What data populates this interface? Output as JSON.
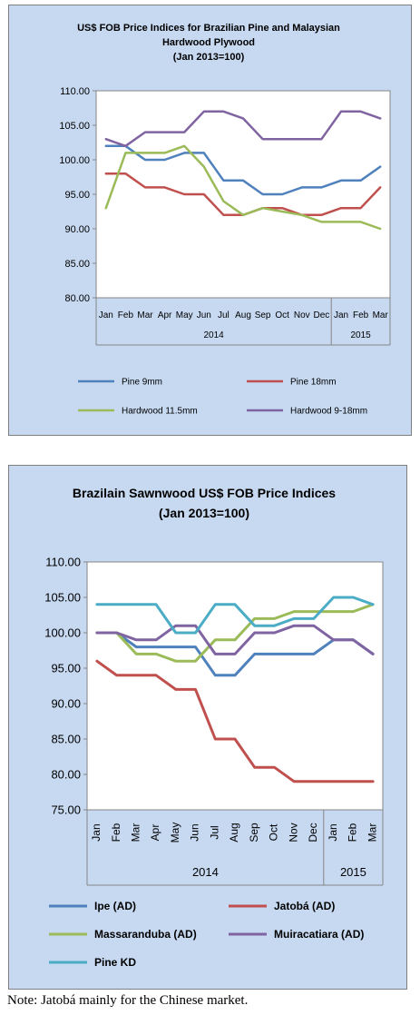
{
  "chart_data": [
    {
      "type": "line",
      "title": [
        "US$ FOB Price Indices for Brazilian Pine and Malaysian",
        "Hardwood Plywood",
        "(Jan 2013=100)"
      ],
      "categories": [
        "Jan",
        "Feb",
        "Mar",
        "Apr",
        "May",
        "Jun",
        "Jul",
        "Aug",
        "Sep",
        "Oct",
        "Nov",
        "Dec",
        "Jan",
        "Feb",
        "Mar"
      ],
      "year_groups": [
        {
          "label": "2014",
          "count": 12
        },
        {
          "label": "2015",
          "count": 3
        }
      ],
      "ylim": [
        80,
        110
      ],
      "yticks": [
        "80.00",
        "85.00",
        "90.00",
        "95.00",
        "100.00",
        "105.00",
        "110.00"
      ],
      "legend_position": "bottom",
      "series": [
        {
          "name": "Pine 9mm",
          "color": "#4f81bd",
          "values": [
            102,
            102,
            100,
            100,
            101,
            101,
            97,
            97,
            95,
            95,
            96,
            96,
            97,
            97,
            99
          ]
        },
        {
          "name": "Pine 18mm",
          "color": "#c0504d",
          "values": [
            98,
            98,
            96,
            96,
            95,
            95,
            92,
            92,
            93,
            93,
            92,
            92,
            93,
            93,
            96
          ]
        },
        {
          "name": "Hardwood 11.5mm",
          "color": "#9bbb59",
          "values": [
            93,
            101,
            101,
            101,
            102,
            99,
            94,
            92,
            93,
            92.5,
            92,
            91,
            91,
            91,
            90
          ]
        },
        {
          "name": "Hardwood 9-18mm",
          "color": "#8064a2",
          "values": [
            103,
            102,
            104,
            104,
            104,
            107,
            107,
            106,
            103,
            103,
            103,
            103,
            107,
            107,
            106
          ]
        }
      ]
    },
    {
      "type": "line",
      "title": [
        "Brazilain Sawnwood US$ FOB Price Indices",
        "(Jan 2013=100)"
      ],
      "categories": [
        "Jan",
        "Feb",
        "Mar",
        "Apr",
        "May",
        "Jun",
        "Jul",
        "Aug",
        "Sep",
        "Oct",
        "Nov",
        "Dec",
        "Jan",
        "Feb",
        "Mar"
      ],
      "year_groups": [
        {
          "label": "2014",
          "count": 12
        },
        {
          "label": "2015",
          "count": 3
        }
      ],
      "ylim": [
        75,
        110
      ],
      "yticks": [
        "75.00",
        "80.00",
        "85.00",
        "90.00",
        "95.00",
        "100.00",
        "105.00",
        "110.00"
      ],
      "legend_position": "bottom",
      "series": [
        {
          "name": "Ipe (AD)",
          "color": "#4f81bd",
          "values": [
            100,
            100,
            98,
            98,
            98,
            98,
            94,
            94,
            97,
            97,
            97,
            97,
            99,
            99,
            97
          ]
        },
        {
          "name": "Jatobá (AD)",
          "color": "#c0504d",
          "values": [
            96,
            94,
            94,
            94,
            92,
            92,
            85,
            85,
            81,
            81,
            79,
            79,
            79,
            79,
            79
          ]
        },
        {
          "name": "Massaranduba (AD)",
          "color": "#9bbb59",
          "values": [
            100,
            100,
            97,
            97,
            96,
            96,
            99,
            99,
            102,
            102,
            103,
            103,
            103,
            103,
            104
          ]
        },
        {
          "name": "Muiracatiara (AD)",
          "color": "#8064a2",
          "values": [
            100,
            100,
            99,
            99,
            101,
            101,
            97,
            97,
            100,
            100,
            101,
            101,
            99,
            99,
            97
          ]
        },
        {
          "name": "Pine KD",
          "color": "#4bacc6",
          "values": [
            104,
            104,
            104,
            104,
            100,
            100,
            104,
            104,
            101,
            101,
            102,
            102,
            105,
            105,
            104
          ]
        }
      ]
    }
  ],
  "note": "Note: Jatobá mainly for the Chinese market."
}
